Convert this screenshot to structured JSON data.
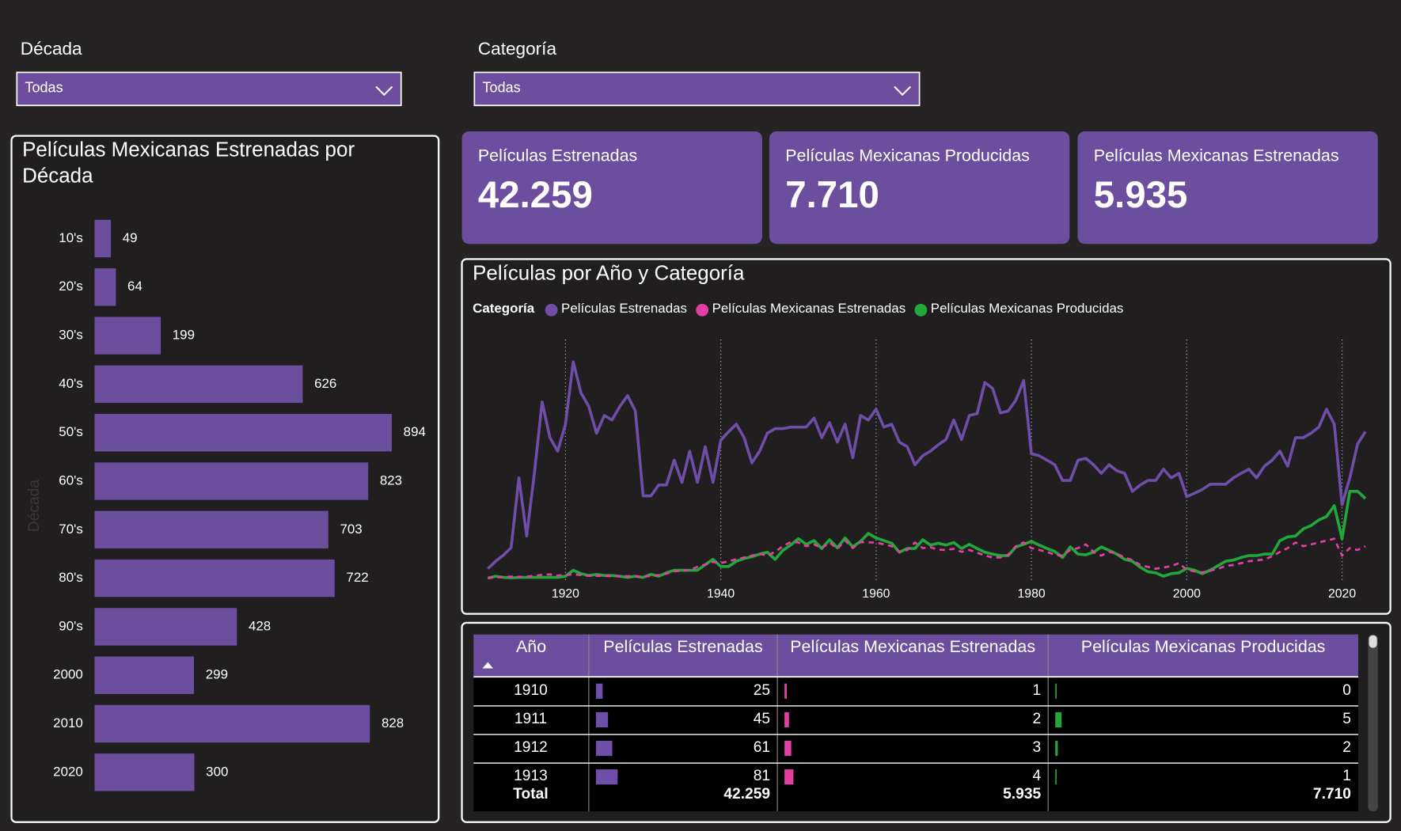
{
  "filters": [
    {
      "label": "Década",
      "value": "Todas"
    },
    {
      "label": "Categoría",
      "value": "Todas"
    }
  ],
  "kpis": [
    {
      "label": "Películas Estrenadas",
      "value": "42.259"
    },
    {
      "label": "Películas Mexicanas Producidas",
      "value": "7.710"
    },
    {
      "label": "Películas Mexicanas Estrenadas",
      "value": "5.935"
    }
  ],
  "chart_data": [
    {
      "type": "bar",
      "orientation": "horizontal",
      "title": "Películas Mexicanas Estrenadas por Década",
      "y_label": "Década",
      "categories": [
        "10's",
        "20's",
        "30's",
        "40's",
        "50's",
        "60's",
        "70's",
        "80's",
        "90's",
        "2000",
        "2010",
        "2020"
      ],
      "values": [
        49,
        64,
        199,
        626,
        894,
        823,
        703,
        722,
        428,
        299,
        828,
        300
      ],
      "color": "#6b4f9e",
      "xlim": [
        0,
        1000
      ]
    },
    {
      "type": "line",
      "title": "Películas por Año y Categoría",
      "legend_title": "Categoría",
      "grid": "x",
      "xlim": [
        1910,
        2023
      ],
      "ylim": [
        0,
        640
      ],
      "xticks": [
        1920,
        1940,
        1960,
        1980,
        2000,
        2020
      ],
      "x": [
        1910,
        1911,
        1912,
        1913,
        1914,
        1915,
        1916,
        1917,
        1918,
        1919,
        1920,
        1921,
        1922,
        1923,
        1924,
        1925,
        1926,
        1927,
        1928,
        1929,
        1930,
        1931,
        1932,
        1933,
        1934,
        1935,
        1936,
        1937,
        1938,
        1939,
        1940,
        1941,
        1942,
        1943,
        1944,
        1945,
        1946,
        1947,
        1948,
        1949,
        1950,
        1951,
        1952,
        1953,
        1954,
        1955,
        1956,
        1957,
        1958,
        1959,
        1960,
        1961,
        1962,
        1963,
        1964,
        1965,
        1966,
        1967,
        1968,
        1969,
        1970,
        1971,
        1972,
        1973,
        1974,
        1975,
        1976,
        1977,
        1978,
        1979,
        1980,
        1981,
        1982,
        1983,
        1984,
        1985,
        1986,
        1987,
        1988,
        1989,
        1990,
        1991,
        1992,
        1993,
        1994,
        1995,
        1996,
        1997,
        1998,
        1999,
        2000,
        2001,
        2002,
        2003,
        2004,
        2005,
        2006,
        2007,
        2008,
        2009,
        2010,
        2011,
        2012,
        2013,
        2014,
        2015,
        2016,
        2017,
        2018,
        2019,
        2020,
        2021,
        2022,
        2023
      ],
      "series": [
        {
          "name": "Películas Estrenadas",
          "color": "#6e4ea8",
          "dash": false,
          "values": [
            25,
            45,
            61,
            81,
            267,
            112,
            279,
            469,
            374,
            338,
            410,
            576,
            493,
            457,
            386,
            433,
            421,
            457,
            486,
            445,
            219,
            219,
            248,
            248,
            314,
            255,
            338,
            255,
            350,
            255,
            367,
            390,
            410,
            374,
            307,
            338,
            386,
            398,
            398,
            402,
            402,
            402,
            426,
            374,
            414,
            362,
            410,
            321,
            433,
            421,
            450,
            402,
            410,
            362,
            350,
            302,
            326,
            338,
            355,
            369,
            421,
            369,
            433,
            438,
            521,
            505,
            440,
            445,
            474,
            526,
            331,
            326,
            314,
            302,
            260,
            260,
            314,
            319,
            302,
            279,
            302,
            286,
            279,
            231,
            248,
            260,
            260,
            290,
            267,
            279,
            217,
            226,
            236,
            250,
            250,
            250,
            267,
            279,
            290,
            267,
            298,
            314,
            338,
            298,
            374,
            374,
            386,
            402,
            450,
            410,
            195,
            267,
            357,
            390
          ]
        },
        {
          "name": "Películas Mexicanas Estrenadas",
          "color": "#e33fa3",
          "dash": true,
          "values": [
            1,
            2,
            3,
            4,
            3,
            4,
            6,
            9,
            10,
            7,
            8,
            10,
            8,
            6,
            6,
            6,
            5,
            5,
            5,
            5,
            4,
            6,
            8,
            12,
            18,
            20,
            22,
            30,
            36,
            43,
            40,
            45,
            50,
            55,
            60,
            65,
            60,
            70,
            85,
            96,
            95,
            85,
            90,
            80,
            95,
            78,
            100,
            80,
            96,
            95,
            95,
            90,
            85,
            70,
            75,
            95,
            80,
            82,
            76,
            75,
            78,
            70,
            75,
            68,
            60,
            55,
            55,
            62,
            85,
            95,
            80,
            75,
            70,
            62,
            60,
            75,
            80,
            90,
            70,
            60,
            70,
            65,
            55,
            48,
            35,
            30,
            25,
            28,
            32,
            40,
            22,
            18,
            15,
            20,
            25,
            32,
            35,
            40,
            45,
            47,
            50,
            58,
            70,
            80,
            95,
            85,
            90,
            95,
            100,
            105,
            60,
            80,
            75,
            85
          ]
        },
        {
          "name": "Películas Mexicanas Producidas",
          "color": "#22a83a",
          "dash": false,
          "values": [
            0,
            5,
            2,
            1,
            2,
            2,
            2,
            2,
            2,
            2,
            5,
            21,
            12,
            7,
            10,
            7,
            7,
            5,
            2,
            5,
            2,
            10,
            5,
            14,
            21,
            21,
            21,
            21,
            36,
            50,
            31,
            31,
            45,
            52,
            57,
            64,
            69,
            50,
            74,
            88,
            105,
            90,
            100,
            79,
            102,
            81,
            107,
            83,
            98,
            119,
            107,
            100,
            93,
            69,
            79,
            79,
            102,
            88,
            93,
            88,
            95,
            79,
            90,
            79,
            69,
            64,
            60,
            60,
            83,
            90,
            98,
            88,
            79,
            71,
            55,
            83,
            64,
            62,
            69,
            83,
            74,
            64,
            50,
            45,
            29,
            17,
            14,
            5,
            12,
            14,
            26,
            21,
            12,
            21,
            33,
            45,
            48,
            55,
            60,
            60,
            64,
            64,
            100,
            110,
            112,
            131,
            140,
            155,
            164,
            193,
            105,
            231,
            231,
            212
          ]
        }
      ]
    }
  ],
  "table": {
    "columns": [
      "Año",
      "Películas Estrenadas",
      "Películas Mexicanas Estrenadas",
      "Películas Mexicanas Producidas"
    ],
    "bar_colors": [
      "#6e4ea8",
      "#e33fa3",
      "#22a83a"
    ],
    "rows": [
      [
        1910,
        25,
        1,
        0
      ],
      [
        1911,
        45,
        2,
        5
      ],
      [
        1912,
        61,
        3,
        2
      ],
      [
        1913,
        81,
        4,
        1
      ]
    ],
    "total": [
      "Total",
      "42.259",
      "5.935",
      "7.710"
    ]
  }
}
